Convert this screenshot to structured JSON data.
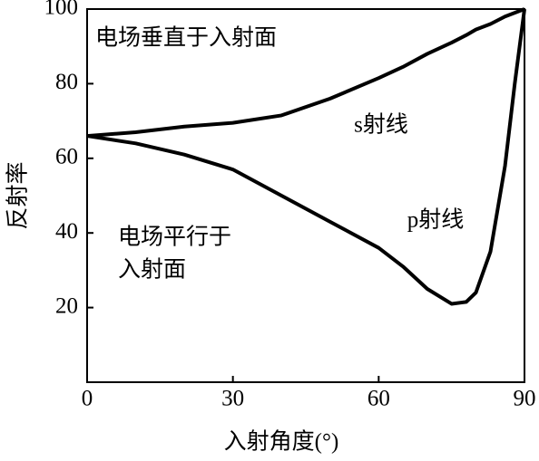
{
  "chart_data": {
    "type": "line",
    "xlabel": "入射角度(°)",
    "ylabel": "反射率",
    "x": [
      0,
      10,
      20,
      30,
      40,
      50,
      60,
      65,
      70,
      75,
      78,
      80,
      83,
      86,
      88,
      90
    ],
    "series": [
      {
        "name": "s射线",
        "color": "#000000",
        "values": [
          66,
          67,
          68.5,
          69.5,
          71.5,
          76,
          81.5,
          84.5,
          88,
          91,
          93,
          94.5,
          96,
          98,
          99,
          100
        ]
      },
      {
        "name": "p射线",
        "color": "#000000",
        "values": [
          66,
          64,
          61,
          57,
          50,
          43,
          36,
          31,
          25,
          21,
          21.5,
          24,
          35,
          58,
          80,
          100
        ]
      }
    ],
    "annotations": [
      {
        "lines": [
          "电场垂直于入射面"
        ]
      },
      {
        "lines": [
          "电场平行于",
          "入射面"
        ]
      }
    ],
    "xlim": [
      0,
      90
    ],
    "xticks": [
      0,
      30,
      60,
      90
    ],
    "ylim": [
      0,
      100
    ],
    "yticks": [
      20,
      40,
      60,
      80,
      100
    ]
  }
}
